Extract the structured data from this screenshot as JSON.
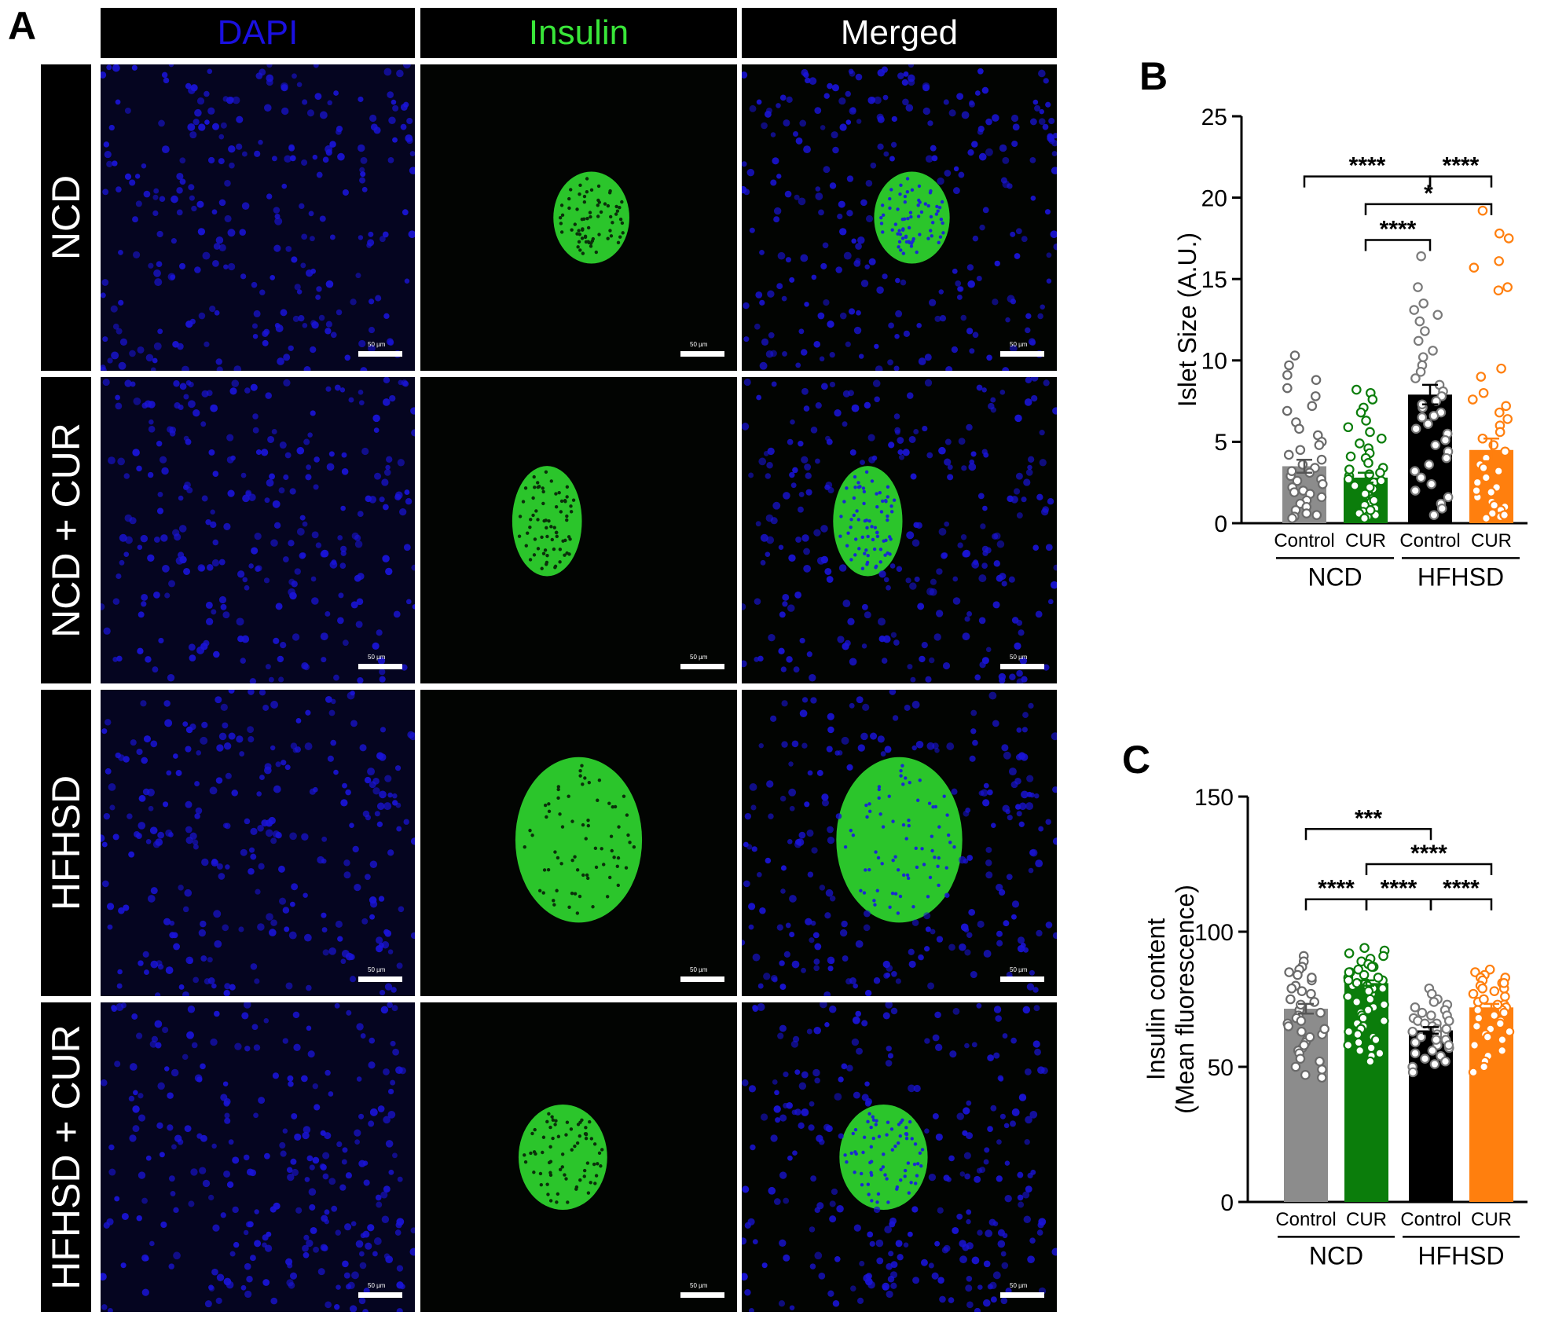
{
  "panels": {
    "A": "A",
    "B": "B",
    "C": "C"
  },
  "microscopy": {
    "columns": [
      {
        "label": "DAPI",
        "color": "#1a10e0"
      },
      {
        "label": "Insulin",
        "color": "#39e639"
      },
      {
        "label": "Merged",
        "color": "#ffffff"
      }
    ],
    "rows": [
      "NCD",
      "NCD + CUR",
      "HFHSD",
      "HFHSD + CUR"
    ],
    "scale_bar": "50 µm"
  },
  "chart_data": [
    {
      "type": "bar",
      "panel": "B",
      "ylabel": "Islet Size (A.U.)",
      "ylim": [
        0,
        25
      ],
      "yticks": [
        0,
        5,
        10,
        15,
        20,
        25
      ],
      "categories": [
        "Control",
        "CUR",
        "Control",
        "CUR"
      ],
      "groups": [
        {
          "label": "NCD",
          "members": [
            0,
            1
          ]
        },
        {
          "label": "HFHSD",
          "members": [
            2,
            3
          ]
        }
      ],
      "colors": [
        "#8c8c8c",
        "#0b7d0b",
        "#000000",
        "#ff7f0e"
      ],
      "values": [
        3.5,
        2.8,
        7.9,
        4.5
      ],
      "errors": [
        0.4,
        0.3,
        0.6,
        0.7
      ],
      "points": [
        [
          10.3,
          9.7,
          9.1,
          8.8,
          8.3,
          7.8,
          7.2,
          6.9,
          6.2,
          5.8,
          5.4,
          5.0,
          4.8,
          4.5,
          4.2,
          3.9,
          3.6,
          3.4,
          3.1,
          2.9,
          2.7,
          2.4,
          2.2,
          2.0,
          1.8,
          1.6,
          1.4,
          1.2,
          1.0,
          0.8,
          0.6,
          0.5,
          0.4,
          0.3,
          2.6,
          1.9,
          3.2
        ],
        [
          8.2,
          8.0,
          7.6,
          7.1,
          6.8,
          6.3,
          5.9,
          5.6,
          5.2,
          4.9,
          4.6,
          4.3,
          4.0,
          3.7,
          3.4,
          3.1,
          2.9,
          2.7,
          2.5,
          2.3,
          2.1,
          1.9,
          1.7,
          1.5,
          1.3,
          1.1,
          0.9,
          0.7,
          0.6,
          0.5,
          0.4,
          0.3,
          2.2,
          1.8,
          3.3,
          2.6,
          1.4,
          0.8,
          4.1,
          3.0
        ],
        [
          16.4,
          14.5,
          13.5,
          13.1,
          12.8,
          12.4,
          11.8,
          11.2,
          10.6,
          10.2,
          9.7,
          9.3,
          8.9,
          8.5,
          8.1,
          7.8,
          7.5,
          7.1,
          6.8,
          6.5,
          6.1,
          5.8,
          5.5,
          5.1,
          4.8,
          4.4,
          4.0,
          3.6,
          3.2,
          2.8,
          2.4,
          2.0,
          1.6,
          1.2,
          0.9,
          0.5,
          7.3,
          6.6
        ],
        [
          19.2,
          17.8,
          17.5,
          16.1,
          15.7,
          14.5,
          14.3,
          9.5,
          9.0,
          8.0,
          7.6,
          7.2,
          6.8,
          6.4,
          6.0,
          5.6,
          5.2,
          4.8,
          4.4,
          4.0,
          3.6,
          3.2,
          2.8,
          2.5,
          2.2,
          1.9,
          1.6,
          1.3,
          1.0,
          0.8,
          0.6,
          0.4,
          0.3,
          2.0,
          1.1,
          3.4,
          0.5
        ]
      ],
      "comparisons": [
        {
          "from": 0,
          "to": 2,
          "label": "****",
          "y": 21.3
        },
        {
          "from": 2,
          "to": 3,
          "label": "****",
          "y": 21.3
        },
        {
          "from": 1,
          "to": 3,
          "label": "*",
          "y": 19.6
        },
        {
          "from": 1,
          "to": 2,
          "label": "****",
          "y": 17.4
        }
      ]
    },
    {
      "type": "bar",
      "panel": "C",
      "ylabel": "Insulin content",
      "ylabel2": "(Mean fluorescence)",
      "ylim": [
        0,
        150
      ],
      "yticks": [
        0,
        50,
        100,
        150
      ],
      "categories": [
        "Control",
        "CUR",
        "Control",
        "CUR"
      ],
      "groups": [
        {
          "label": "NCD",
          "members": [
            0,
            1
          ]
        },
        {
          "label": "HFHSD",
          "members": [
            2,
            3
          ]
        }
      ],
      "colors": [
        "#8c8c8c",
        "#0b7d0b",
        "#000000",
        "#ff7f0e"
      ],
      "values": [
        71.5,
        81.0,
        63.5,
        72.0
      ],
      "errors": [
        1.8,
        1.0,
        1.2,
        1.3
      ],
      "points": [
        [
          91,
          89,
          87,
          86,
          84,
          82,
          80,
          79,
          77,
          75,
          74,
          72,
          71,
          69,
          68,
          66,
          65,
          63,
          62,
          60,
          59,
          57,
          56,
          55,
          53,
          52,
          50,
          49,
          47,
          46,
          73,
          78,
          70,
          67,
          64,
          61,
          58,
          83,
          85
        ],
        [
          94,
          93,
          92,
          91,
          90,
          89,
          88,
          87,
          86,
          85,
          84,
          83,
          82,
          81,
          80,
          79,
          78,
          77,
          76,
          75,
          74,
          73,
          72,
          71,
          70,
          69,
          68,
          67,
          66,
          65,
          64,
          63,
          62,
          61,
          60,
          59,
          58,
          57,
          56,
          55,
          54,
          52,
          81,
          83,
          85,
          79,
          87,
          82,
          80,
          78
        ],
        [
          79,
          77,
          75,
          74,
          73,
          72,
          71,
          70,
          69,
          68,
          67,
          66,
          65,
          64,
          63,
          62,
          61,
          60,
          59,
          58,
          57,
          56,
          55,
          54,
          53,
          52,
          51,
          50,
          48,
          64,
          66,
          62,
          60,
          67,
          69,
          58
        ],
        [
          86,
          85,
          84,
          83,
          82,
          81,
          80,
          79,
          78,
          77,
          76,
          75,
          74,
          73,
          72,
          71,
          70,
          69,
          68,
          67,
          66,
          65,
          64,
          63,
          62,
          61,
          60,
          58,
          56,
          54,
          52,
          50,
          48,
          75,
          79,
          73,
          71,
          69,
          83,
          81
        ]
      ],
      "comparisons": [
        {
          "from": 0,
          "to": 2,
          "label": "***",
          "y": 138
        },
        {
          "from": 1,
          "to": 3,
          "label": "****",
          "y": 125
        },
        {
          "from": 0,
          "to": 1,
          "label": "****",
          "y": 112
        },
        {
          "from": 1,
          "to": 2,
          "label": "****",
          "y": 112
        },
        {
          "from": 2,
          "to": 3,
          "label": "****",
          "y": 112
        }
      ]
    }
  ]
}
